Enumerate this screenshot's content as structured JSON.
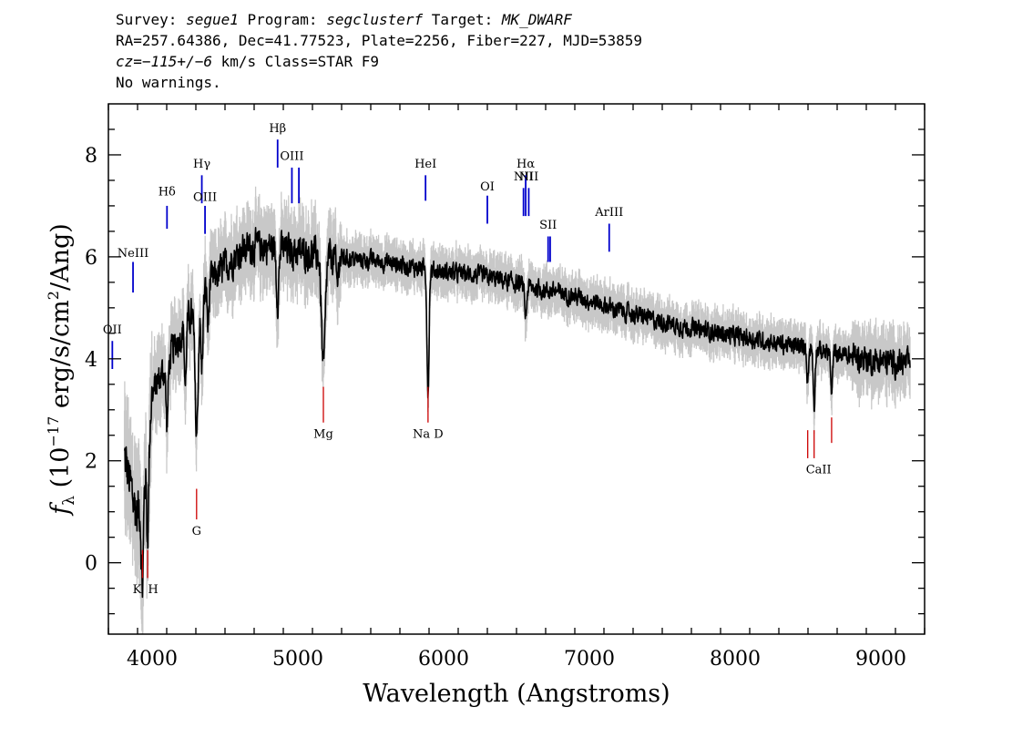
{
  "header": {
    "line1": {
      "survey_label": "Survey: ",
      "survey": "segue1",
      "program_label": " Program: ",
      "program": "segclusterf",
      "target_label": " Target: ",
      "target": "MK_DWARF"
    },
    "line2": "RA=257.64386, Dec=41.77523, Plate=2256, Fiber=227, MJD=53859",
    "line3": {
      "cz": "cz=−115+/−6",
      "rest": " km/s Class=STAR F9"
    },
    "line4": "No warnings."
  },
  "chart_data": {
    "type": "line",
    "xlabel": "Wavelength (Angstroms)",
    "ylabel": {
      "prefix": "f",
      "sub": "λ",
      "unit": " (10",
      "exp1": "−17",
      "mid": " erg/s/cm",
      "exp2": "2",
      "end": "/Ang)"
    },
    "xlim": [
      3700,
      9300
    ],
    "ylim": [
      -1.4,
      9.0
    ],
    "xticks": [
      4000,
      5000,
      6000,
      7000,
      8000,
      9000
    ],
    "yticks": [
      0,
      2,
      4,
      6,
      8
    ],
    "colors": {
      "flux": "#000000",
      "error_band": "#c8c8c8",
      "emission": "#0000cc",
      "absorption": "#cc0000"
    },
    "continuum": {
      "x": [
        3800,
        3850,
        3900,
        3950,
        4000,
        4100,
        4200,
        4300,
        4400,
        4500,
        4600,
        4700,
        4800,
        5000,
        5200,
        5400,
        5600,
        5800,
        6000,
        6200,
        6400,
        6600,
        6800,
        7000,
        7200,
        7400,
        7600,
        7800,
        8000,
        8200,
        8400,
        8600,
        8800,
        9000,
        9200
      ],
      "y": [
        2.2,
        1.5,
        0.9,
        2.2,
        3.3,
        3.9,
        4.5,
        5.0,
        5.5,
        5.8,
        6.1,
        6.2,
        6.2,
        6.1,
        6.0,
        5.95,
        5.9,
        5.8,
        5.7,
        5.65,
        5.55,
        5.4,
        5.3,
        5.15,
        4.95,
        4.8,
        4.65,
        4.55,
        4.45,
        4.35,
        4.25,
        4.15,
        4.05,
        3.95,
        3.9
      ]
    },
    "absorption_features": [
      {
        "x": 3934,
        "depth": 2.2,
        "width": 12
      },
      {
        "x": 3969,
        "depth": 2.0,
        "width": 12
      },
      {
        "x": 4102,
        "depth": 1.2,
        "width": 10
      },
      {
        "x": 4228,
        "depth": 1.2,
        "width": 8
      },
      {
        "x": 4305,
        "depth": 2.5,
        "width": 15
      },
      {
        "x": 4341,
        "depth": 1.4,
        "width": 10
      },
      {
        "x": 4384,
        "depth": 0.8,
        "width": 8
      },
      {
        "x": 4861,
        "depth": 1.0,
        "width": 12
      },
      {
        "x": 5175,
        "depth": 2.2,
        "width": 18
      },
      {
        "x": 5270,
        "depth": 0.5,
        "width": 10
      },
      {
        "x": 5893,
        "depth": 2.4,
        "width": 10
      },
      {
        "x": 6563,
        "depth": 0.6,
        "width": 10
      },
      {
        "x": 8498,
        "depth": 0.6,
        "width": 8
      },
      {
        "x": 8542,
        "depth": 1.1,
        "width": 8
      },
      {
        "x": 8662,
        "depth": 0.9,
        "width": 8
      }
    ],
    "emission_lines": [
      {
        "label": "OII",
        "x": 3727,
        "y_bottom": 3.8,
        "y_top": 4.35,
        "label_y": 4.5
      },
      {
        "label": "NeIII",
        "x": 3869,
        "y_bottom": 5.3,
        "y_top": 5.9,
        "label_y": 6.0
      },
      {
        "label": "Hδ",
        "x": 4102,
        "y_bottom": 6.55,
        "y_top": 7.0,
        "label_y": 7.2
      },
      {
        "label": "Hγ",
        "x": 4341,
        "y_bottom": 7.05,
        "y_top": 7.6,
        "label_y": 7.75
      },
      {
        "label": "OIII",
        "x": 4363,
        "y_bottom": 6.45,
        "y_top": 7.0,
        "label_y": 7.1
      },
      {
        "label": "Hβ",
        "x": 4861,
        "y_bottom": 7.75,
        "y_top": 8.3,
        "label_y": 8.45
      },
      {
        "label": "OIII",
        "x": 4959,
        "y_bottom": 7.05,
        "y_top": 7.75,
        "label_y": 7.9
      },
      {
        "label": "",
        "x": 5007,
        "y_bottom": 7.05,
        "y_top": 7.75,
        "label_y": 7.9
      },
      {
        "label": "HeI",
        "x": 5876,
        "y_bottom": 7.1,
        "y_top": 7.6,
        "label_y": 7.75
      },
      {
        "label": "OI",
        "x": 6300,
        "y_bottom": 6.65,
        "y_top": 7.2,
        "label_y": 7.3
      },
      {
        "label": "NII",
        "x": 6548,
        "y_bottom": 6.8,
        "y_top": 7.35,
        "label_y": 7.5
      },
      {
        "label": "Hα",
        "x": 6563,
        "y_bottom": 6.8,
        "y_top": 7.6,
        "label_y": 7.75
      },
      {
        "label": "NII",
        "x": 6584,
        "y_bottom": 6.8,
        "y_top": 7.35,
        "label_y": 7.5
      },
      {
        "label": "SII",
        "x": 6717,
        "y_bottom": 5.9,
        "y_top": 6.4,
        "label_y": 6.55
      },
      {
        "label": "",
        "x": 6731,
        "y_bottom": 5.9,
        "y_top": 6.4,
        "label_y": 6.55
      },
      {
        "label": "ArIII",
        "x": 7136,
        "y_bottom": 6.1,
        "y_top": 6.65,
        "label_y": 6.8
      }
    ],
    "absorption_lines": [
      {
        "label": "K",
        "x": 3934,
        "y_bottom": -0.3,
        "y_top": 0.25,
        "label_y": -0.6,
        "label_dx": -6
      },
      {
        "label": "H",
        "x": 3969,
        "y_bottom": -0.3,
        "y_top": 0.25,
        "label_y": -0.6,
        "label_dx": 6
      },
      {
        "label": "G",
        "x": 4305,
        "y_bottom": 0.85,
        "y_top": 1.45,
        "label_y": 0.55,
        "label_dx": 0
      },
      {
        "label": "Mg",
        "x": 5175,
        "y_bottom": 2.75,
        "y_top": 3.45,
        "label_y": 2.45,
        "label_dx": 0
      },
      {
        "label": "Na D",
        "x": 5893,
        "y_bottom": 2.75,
        "y_top": 3.45,
        "label_y": 2.45,
        "label_dx": 0
      },
      {
        "label": "CaII",
        "x": 8498,
        "y_bottom": 2.05,
        "y_top": 2.6,
        "label_y": 1.75,
        "label_dx": 12
      },
      {
        "label": "",
        "x": 8542,
        "y_bottom": 2.05,
        "y_top": 2.6,
        "label_y": 1.75,
        "label_dx": 0
      },
      {
        "label": "",
        "x": 8662,
        "y_bottom": 2.35,
        "y_top": 2.85,
        "label_y": 2.0,
        "label_dx": 0
      }
    ]
  }
}
